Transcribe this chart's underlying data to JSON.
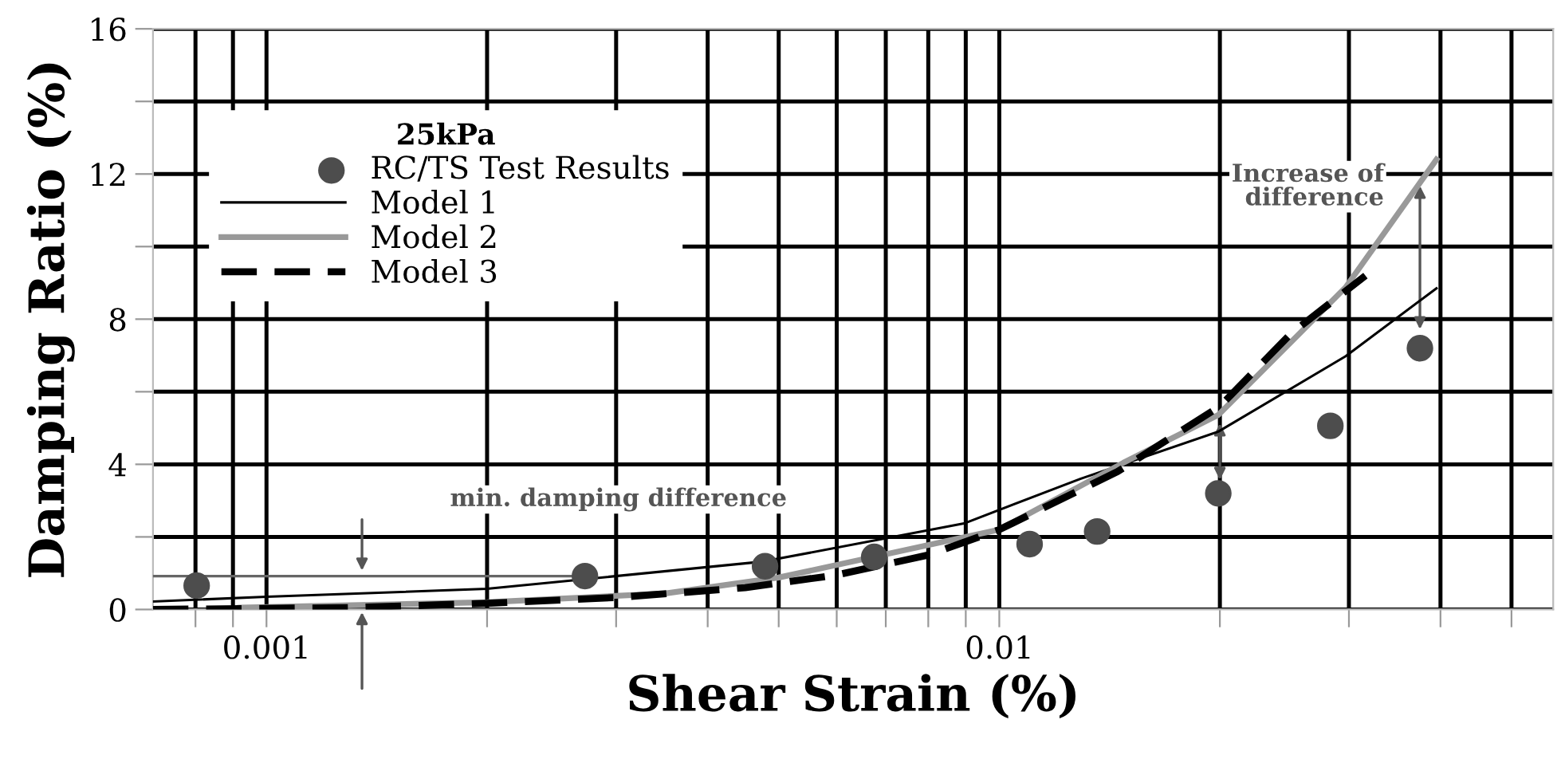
{
  "chart_data": {
    "type": "line",
    "xlabel": "Shear Strain (%)",
    "ylabel": "Damping Ratio (%)",
    "legend_title": "25kPa",
    "log": "x",
    "xlim": [
      0.0007,
      0.057
    ],
    "ylim": [
      0,
      16
    ],
    "xticks": [
      {
        "value": 0.0008,
        "label": null
      },
      {
        "value": 0.0009,
        "label": null
      },
      0.001,
      {
        "value": 0.002,
        "label": null
      },
      {
        "value": 0.003,
        "label": null
      },
      {
        "value": 0.004,
        "label": null
      },
      {
        "value": 0.005,
        "label": null
      },
      {
        "value": 0.006,
        "label": null
      },
      {
        "value": 0.007,
        "label": null
      },
      {
        "value": 0.008,
        "label": null
      },
      {
        "value": 0.009,
        "label": null
      },
      0.01,
      {
        "value": 0.02,
        "label": null
      },
      {
        "value": 0.03,
        "label": null
      },
      {
        "value": 0.04,
        "label": null
      },
      {
        "value": 0.05,
        "label": null
      }
    ],
    "yticks": [
      0,
      {
        "value": 2,
        "label": null
      },
      4,
      {
        "value": 6,
        "label": null
      },
      8,
      {
        "value": 10,
        "label": null
      },
      12,
      {
        "value": 14,
        "label": null
      },
      16
    ],
    "grid": true,
    "legend": "top left",
    "series": [
      {
        "name": "RC/TS Test Results",
        "type": "scatter",
        "marker": "circle",
        "color": "#4d4d4d",
        "x": [
          0.000803,
          0.00272,
          0.00479,
          0.00675,
          0.011,
          0.0136,
          0.0199,
          0.0283,
          0.0375
        ],
        "values": [
          0.66,
          0.92,
          1.19,
          1.45,
          1.8,
          2.15,
          3.2,
          5.06,
          7.2
        ]
      },
      {
        "name": "Model 1",
        "line_style": "solid",
        "color": "#000000",
        "x": [
          0.0007,
          0.001,
          0.002,
          0.00476,
          0.00895,
          0.0129,
          0.0199,
          0.0297,
          0.0395
        ],
        "values": [
          0.22,
          0.35,
          0.57,
          1.32,
          2.37,
          3.6,
          4.9,
          6.98,
          8.85
        ]
      },
      {
        "name": "Model 2",
        "line_style": "solid",
        "color": "#999999",
        "x": [
          0.00092,
          0.002,
          0.0035,
          0.005,
          0.01,
          0.01476,
          0.0199,
          0.0297,
          0.0395
        ],
        "values": [
          0.05,
          0.2,
          0.44,
          0.88,
          2.2,
          4.04,
          5.36,
          8.88,
          12.4
        ]
      },
      {
        "name": "Model 3",
        "line_style": "dashed",
        "color": "#000000",
        "x": [
          0.0007,
          0.0013,
          0.002,
          0.003,
          0.0045,
          0.006,
          0.008,
          0.01,
          0.0145,
          0.02,
          0.025,
          0.0316
        ],
        "values": [
          0,
          0.05,
          0.17,
          0.33,
          0.6,
          0.95,
          1.5,
          2.2,
          3.8,
          5.6,
          7.6,
          9.2
        ]
      }
    ],
    "annotations": [
      "min. damping difference",
      "Increase of\ndifference"
    ]
  }
}
